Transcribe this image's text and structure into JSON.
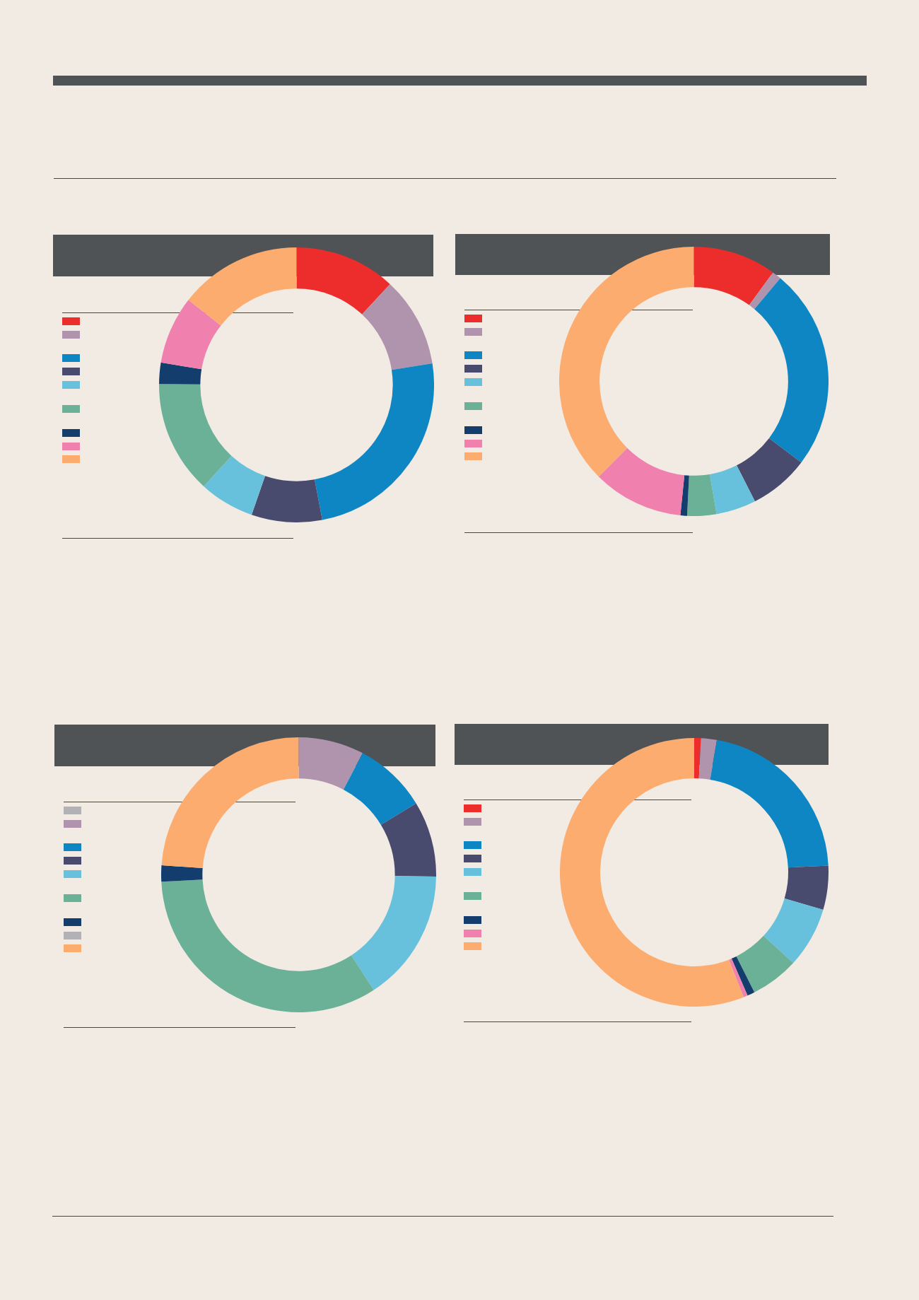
{
  "chart_data": [
    {
      "type": "donut",
      "categories": [
        null,
        null,
        null,
        null,
        null,
        null,
        null,
        null,
        null
      ],
      "values": [
        11.9,
        10.6,
        24.5,
        8.3,
        6.5,
        13.3,
        2.5,
        8.0,
        14.4
      ],
      "colors": [
        "#ec2d2b",
        "#b094ae",
        "#0e86c4",
        "#484a6e",
        "#68c1dc",
        "#6ab198",
        "#133d6c",
        "#f081ae",
        "#fcac6e"
      ]
    },
    {
      "type": "donut",
      "categories": [
        null,
        null,
        null,
        null,
        null,
        null,
        null,
        null,
        null
      ],
      "values": [
        10.0,
        1.1,
        24.2,
        7.2,
        4.8,
        3.5,
        0.8,
        10.9,
        37.5
      ],
      "colors": [
        "#ec2d2b",
        "#b094ae",
        "#0e86c4",
        "#484a6e",
        "#68c1dc",
        "#6ab198",
        "#133d6c",
        "#f081ae",
        "#fcac6e"
      ]
    },
    {
      "type": "donut",
      "categories": [
        null,
        null,
        null,
        null,
        null,
        null,
        null,
        null,
        null
      ],
      "values": [
        0,
        7.7,
        8.6,
        8.9,
        15.6,
        33.4,
        1.9,
        0,
        23.9
      ],
      "colors": [
        "#b2b2b4",
        "#b094ae",
        "#0e86c4",
        "#484a6e",
        "#68c1dc",
        "#6ab198",
        "#133d6c",
        "#b2b2b4",
        "#fcac6e"
      ]
    },
    {
      "type": "donut",
      "categories": [
        null,
        null,
        null,
        null,
        null,
        null,
        null,
        null,
        null
      ],
      "values": [
        0.8,
        1.9,
        21.5,
        5.3,
        7.3,
        5.8,
        0.9,
        0.5,
        56.0
      ],
      "colors": [
        "#ec2d2b",
        "#b094ae",
        "#0e86c4",
        "#484a6e",
        "#68c1dc",
        "#6ab198",
        "#133d6c",
        "#f081ae",
        "#fcac6e"
      ]
    }
  ]
}
